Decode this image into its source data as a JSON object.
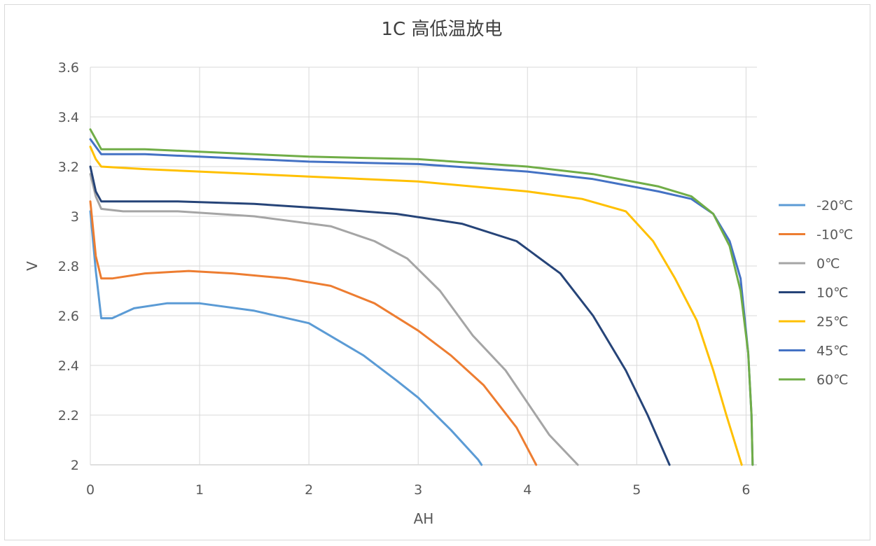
{
  "chart_data": {
    "type": "line",
    "title": "1C 高低温放电",
    "xlabel": "AH",
    "ylabel": "V",
    "xlim": [
      0,
      6.1
    ],
    "ylim": [
      2,
      3.6
    ],
    "x_ticks": [
      "0",
      "1",
      "2",
      "3",
      "4",
      "5",
      "6"
    ],
    "y_ticks": [
      "2",
      "2.2",
      "2.4",
      "2.6",
      "2.8",
      "3",
      "3.2",
      "3.4",
      "3.6"
    ],
    "grid": true,
    "legend_position": "right",
    "series": [
      {
        "name": "-20℃",
        "color": "#5b9bd5",
        "points": [
          [
            0,
            3.02
          ],
          [
            0.05,
            2.78
          ],
          [
            0.1,
            2.59
          ],
          [
            0.2,
            2.59
          ],
          [
            0.4,
            2.63
          ],
          [
            0.7,
            2.65
          ],
          [
            1.0,
            2.65
          ],
          [
            1.5,
            2.62
          ],
          [
            2.0,
            2.57
          ],
          [
            2.5,
            2.44
          ],
          [
            2.8,
            2.34
          ],
          [
            3.0,
            2.27
          ],
          [
            3.3,
            2.14
          ],
          [
            3.55,
            2.02
          ],
          [
            3.58,
            2.0
          ]
        ]
      },
      {
        "name": "-10℃",
        "color": "#ed7d31",
        "points": [
          [
            0,
            3.06
          ],
          [
            0.05,
            2.84
          ],
          [
            0.1,
            2.75
          ],
          [
            0.2,
            2.75
          ],
          [
            0.5,
            2.77
          ],
          [
            0.9,
            2.78
          ],
          [
            1.3,
            2.77
          ],
          [
            1.8,
            2.75
          ],
          [
            2.2,
            2.72
          ],
          [
            2.6,
            2.65
          ],
          [
            3.0,
            2.54
          ],
          [
            3.3,
            2.44
          ],
          [
            3.6,
            2.32
          ],
          [
            3.9,
            2.15
          ],
          [
            4.08,
            2.0
          ]
        ]
      },
      {
        "name": "0℃",
        "color": "#a5a5a5",
        "points": [
          [
            0,
            3.17
          ],
          [
            0.05,
            3.08
          ],
          [
            0.1,
            3.03
          ],
          [
            0.3,
            3.02
          ],
          [
            0.8,
            3.02
          ],
          [
            1.5,
            3.0
          ],
          [
            2.2,
            2.96
          ],
          [
            2.6,
            2.9
          ],
          [
            2.9,
            2.83
          ],
          [
            3.2,
            2.7
          ],
          [
            3.5,
            2.52
          ],
          [
            3.8,
            2.38
          ],
          [
            4.0,
            2.25
          ],
          [
            4.2,
            2.12
          ],
          [
            4.46,
            2.0
          ]
        ]
      },
      {
        "name": "10℃",
        "color": "#264478",
        "points": [
          [
            0,
            3.2
          ],
          [
            0.05,
            3.1
          ],
          [
            0.1,
            3.06
          ],
          [
            0.3,
            3.06
          ],
          [
            0.8,
            3.06
          ],
          [
            1.5,
            3.05
          ],
          [
            2.2,
            3.03
          ],
          [
            2.8,
            3.01
          ],
          [
            3.4,
            2.97
          ],
          [
            3.9,
            2.9
          ],
          [
            4.3,
            2.77
          ],
          [
            4.6,
            2.6
          ],
          [
            4.9,
            2.38
          ],
          [
            5.1,
            2.2
          ],
          [
            5.3,
            2.0
          ]
        ]
      },
      {
        "name": "25℃",
        "color": "#ffc000",
        "points": [
          [
            0,
            3.28
          ],
          [
            0.05,
            3.23
          ],
          [
            0.1,
            3.2
          ],
          [
            0.5,
            3.19
          ],
          [
            1.0,
            3.18
          ],
          [
            2.0,
            3.16
          ],
          [
            3.0,
            3.14
          ],
          [
            4.0,
            3.1
          ],
          [
            4.5,
            3.07
          ],
          [
            4.9,
            3.02
          ],
          [
            5.15,
            2.9
          ],
          [
            5.35,
            2.75
          ],
          [
            5.55,
            2.58
          ],
          [
            5.7,
            2.38
          ],
          [
            5.82,
            2.2
          ],
          [
            5.96,
            2.0
          ]
        ]
      },
      {
        "name": "45℃",
        "color": "#4472c4",
        "points": [
          [
            0,
            3.31
          ],
          [
            0.05,
            3.28
          ],
          [
            0.1,
            3.25
          ],
          [
            0.5,
            3.25
          ],
          [
            1.0,
            3.24
          ],
          [
            2.0,
            3.22
          ],
          [
            3.0,
            3.21
          ],
          [
            4.0,
            3.18
          ],
          [
            4.6,
            3.15
          ],
          [
            5.2,
            3.1
          ],
          [
            5.5,
            3.07
          ],
          [
            5.7,
            3.01
          ],
          [
            5.85,
            2.9
          ],
          [
            5.95,
            2.75
          ],
          [
            6.02,
            2.45
          ],
          [
            6.05,
            2.2
          ],
          [
            6.06,
            2.0
          ]
        ]
      },
      {
        "name": "60℃",
        "color": "#70ad47",
        "points": [
          [
            0,
            3.35
          ],
          [
            0.05,
            3.31
          ],
          [
            0.1,
            3.27
          ],
          [
            0.5,
            3.27
          ],
          [
            1.0,
            3.26
          ],
          [
            2.0,
            3.24
          ],
          [
            3.0,
            3.23
          ],
          [
            4.0,
            3.2
          ],
          [
            4.6,
            3.17
          ],
          [
            5.2,
            3.12
          ],
          [
            5.5,
            3.08
          ],
          [
            5.7,
            3.01
          ],
          [
            5.85,
            2.88
          ],
          [
            5.95,
            2.7
          ],
          [
            6.02,
            2.45
          ],
          [
            6.05,
            2.2
          ],
          [
            6.06,
            2.0
          ]
        ]
      }
    ]
  }
}
